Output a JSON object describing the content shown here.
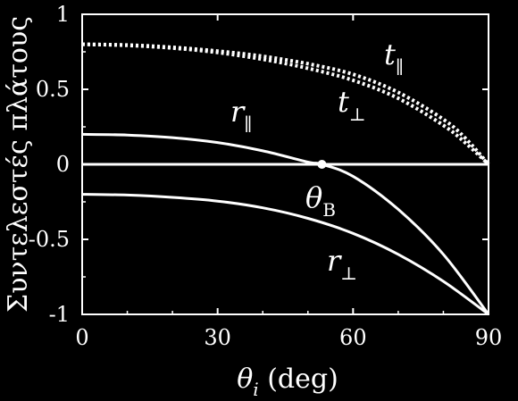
{
  "chart_data": {
    "type": "line",
    "title": "",
    "xlabel": "θi (deg)",
    "xlabel_parts": {
      "symbol": "θ",
      "subscript": "i",
      "unit": "(deg)"
    },
    "ylabel": "Συντελεστές πλάτους",
    "xlim": [
      0,
      90
    ],
    "ylim": [
      -1,
      1
    ],
    "x_ticks": [
      0,
      30,
      60,
      90
    ],
    "y_ticks": [
      1,
      0.5,
      0,
      -0.5,
      -1
    ],
    "x_tick_labels": [
      "0",
      "30",
      "60",
      "90"
    ],
    "y_tick_labels": [
      "1",
      "0.5",
      "0",
      "-0.5",
      "-1"
    ],
    "grid": false,
    "zero_line": true,
    "colors": {
      "background": "#000000",
      "foreground": "#ffffff"
    },
    "series": [
      {
        "name": "t∥",
        "label_symbol": "t",
        "label_sub": "∥",
        "style": "dotted",
        "x": [
          0,
          10,
          20,
          30,
          40,
          50,
          60,
          70,
          80,
          85,
          90
        ],
        "y": [
          0.8,
          0.795,
          0.78,
          0.755,
          0.72,
          0.67,
          0.6,
          0.48,
          0.3,
          0.17,
          0.0
        ]
      },
      {
        "name": "t⊥",
        "label_symbol": "t",
        "label_sub": "⊥",
        "style": "dotted",
        "x": [
          0,
          10,
          20,
          30,
          40,
          50,
          60,
          70,
          80,
          85,
          90
        ],
        "y": [
          0.8,
          0.793,
          0.775,
          0.745,
          0.7,
          0.64,
          0.56,
          0.44,
          0.26,
          0.14,
          0.0
        ]
      },
      {
        "name": "r∥",
        "label_symbol": "r",
        "label_sub": "∥",
        "style": "solid",
        "x": [
          0,
          10,
          20,
          30,
          40,
          50,
          53.1,
          60,
          70,
          80,
          90
        ],
        "y": [
          0.2,
          0.195,
          0.178,
          0.145,
          0.09,
          0.015,
          0.0,
          -0.08,
          -0.3,
          -0.6,
          -1.0
        ]
      },
      {
        "name": "r⊥",
        "label_symbol": "r",
        "label_sub": "⊥",
        "style": "solid",
        "x": [
          0,
          10,
          20,
          30,
          40,
          50,
          60,
          70,
          80,
          90
        ],
        "y": [
          -0.2,
          -0.205,
          -0.22,
          -0.245,
          -0.29,
          -0.36,
          -0.46,
          -0.6,
          -0.78,
          -1.0
        ]
      }
    ],
    "annotations": [
      {
        "text": "θB",
        "symbol": "θ",
        "subscript": "B",
        "x": 53.1,
        "y": 0.0
      }
    ]
  }
}
